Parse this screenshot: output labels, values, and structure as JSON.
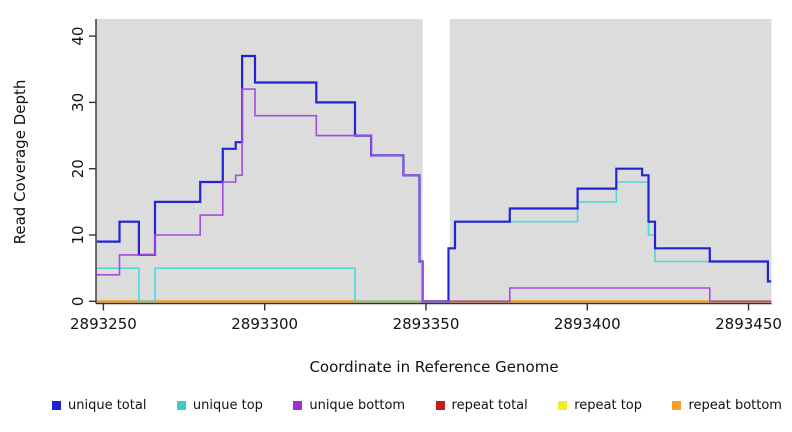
{
  "figure": {
    "ylabel": "Read Coverage Depth",
    "xlabel": "Coordinate in Reference Genome"
  },
  "chart_data": {
    "type": "line",
    "subtype": "step",
    "title": "",
    "xlabel": "Coordinate in Reference Genome",
    "ylabel": "Read Coverage Depth",
    "xlim": [
      2893248,
      2893457
    ],
    "ylim": [
      0,
      42
    ],
    "x_ticks": [
      2893250,
      2893300,
      2893350,
      2893400,
      2893450
    ],
    "y_ticks": [
      0,
      10,
      20,
      30,
      40
    ],
    "grid": "off",
    "panel_bg": "#dcdcdc",
    "gap_region": [
      2893349,
      2893357.4
    ],
    "legend_position": "bottom",
    "draw_order": [
      "repeat total",
      "repeat top",
      "repeat bottom",
      "unique top",
      "unique total",
      "unique bottom"
    ],
    "series": [
      {
        "name": "unique total",
        "color": "#2323d6",
        "width": 2.2,
        "x_end": 2893457,
        "steps": [
          [
            2893248,
            9
          ],
          [
            2893255,
            12
          ],
          [
            2893261,
            7
          ],
          [
            2893266,
            15
          ],
          [
            2893280,
            18
          ],
          [
            2893287,
            23
          ],
          [
            2893291,
            24
          ],
          [
            2893293,
            37
          ],
          [
            2893297,
            33
          ],
          [
            2893316,
            30
          ],
          [
            2893328,
            25
          ],
          [
            2893333,
            22
          ],
          [
            2893343,
            19
          ],
          [
            2893348,
            6
          ],
          [
            2893349,
            0
          ],
          [
            2893357,
            8
          ],
          [
            2893359,
            12
          ],
          [
            2893376,
            14
          ],
          [
            2893397,
            17
          ],
          [
            2893409,
            20
          ],
          [
            2893417,
            19
          ],
          [
            2893419,
            12
          ],
          [
            2893421,
            8
          ],
          [
            2893438,
            6
          ],
          [
            2893456,
            3
          ]
        ]
      },
      {
        "name": "unique top",
        "color": "#4fd8d8",
        "width": 1.6,
        "x_end": 2893457,
        "steps": [
          [
            2893248,
            5
          ],
          [
            2893261,
            0
          ],
          [
            2893266,
            5
          ],
          [
            2893328,
            0
          ],
          [
            2893357,
            8
          ],
          [
            2893359,
            12
          ],
          [
            2893397,
            15
          ],
          [
            2893409,
            18
          ],
          [
            2893419,
            10
          ],
          [
            2893421,
            6
          ],
          [
            2893456,
            3
          ]
        ]
      },
      {
        "name": "unique bottom",
        "color": "#a44be0",
        "width": 1.6,
        "x_end": 2893457,
        "steps": [
          [
            2893248,
            4
          ],
          [
            2893255,
            7
          ],
          [
            2893266,
            10
          ],
          [
            2893280,
            13
          ],
          [
            2893287,
            18
          ],
          [
            2893291,
            19
          ],
          [
            2893293,
            32
          ],
          [
            2893297,
            28
          ],
          [
            2893316,
            25
          ],
          [
            2893333,
            22
          ],
          [
            2893343,
            19
          ],
          [
            2893348,
            6
          ],
          [
            2893349,
            0
          ],
          [
            2893376,
            2
          ],
          [
            2893438,
            0
          ]
        ]
      },
      {
        "name": "repeat total",
        "color": "#c41a1a",
        "width": 1.8,
        "x_end": 2893457,
        "steps": [
          [
            2893248,
            0
          ]
        ]
      },
      {
        "name": "repeat top",
        "color": "#f5f52b",
        "width": 1.8,
        "x_end": 2893457,
        "steps": [
          [
            2893248,
            0
          ]
        ]
      },
      {
        "name": "repeat bottom",
        "color": "#ff9d20",
        "width": 1.8,
        "x_end": 2893457,
        "steps": [
          [
            2893248,
            0
          ]
        ]
      }
    ],
    "legend_items": [
      {
        "label": "unique total",
        "color": "#2323d6"
      },
      {
        "label": "unique top",
        "color": "#35cccc"
      },
      {
        "label": "unique bottom",
        "color": "#9b30d9"
      },
      {
        "label": "repeat total",
        "color": "#c41a1a"
      },
      {
        "label": "repeat top",
        "color": "#f0f022"
      },
      {
        "label": "repeat bottom",
        "color": "#ff9d20"
      }
    ]
  }
}
